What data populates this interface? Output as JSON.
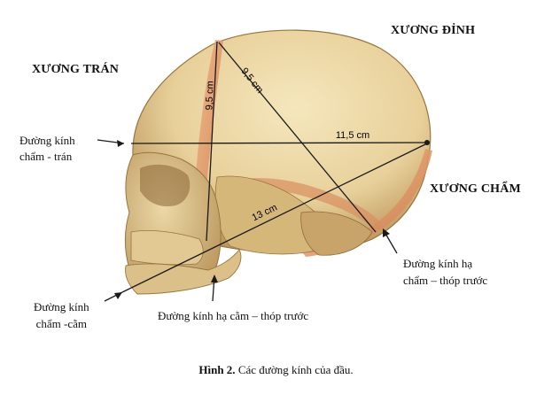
{
  "labels": {
    "bone_parietal": "XƯƠNG ĐỈNH",
    "bone_frontal": "XƯƠNG TRÁN",
    "bone_occipital": "XƯƠNG CHẨM",
    "diam_occ_front_l1": "Đường kính",
    "diam_occ_front_l2": "chẩm - trán",
    "diam_occ_chin_l1": "Đường kính",
    "diam_occ_chin_l2": "chẩm -cằm",
    "diam_submento": "Đường kính hạ cằm – thóp trước",
    "diam_suboccip_l1": "Đường kính hạ",
    "diam_suboccip_l2": "chẩm – thóp trước"
  },
  "measurements": {
    "vertical": "9,5 cm",
    "diagonal": "9,5 cm",
    "horizontal": "11,5 cm",
    "long": "13 cm"
  },
  "caption": {
    "label": "Hình 2.",
    "text": " Các đường kính của đầu."
  },
  "colors": {
    "bone_light": "#efdcaa",
    "bone_mid": "#d9bd7c",
    "bone_dark": "#a47c42",
    "suture": "#e39a67",
    "line": "#1a1a1a"
  }
}
